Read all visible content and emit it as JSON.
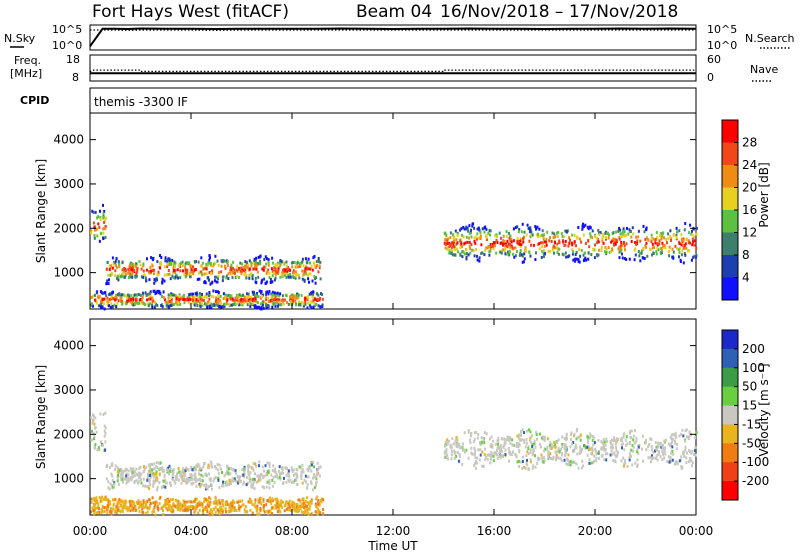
{
  "header": {
    "station": "Fort Hays West (fitACF)",
    "beam": "Beam 04",
    "date_range": "16/Nov/2018 – 17/Nov/2018"
  },
  "colors": {
    "trace": "#000000",
    "grid": "#000000"
  },
  "chart_data": [
    {
      "type": "line",
      "name": "noise-panel",
      "left_label": "N.Sky",
      "right_label": "N.Search",
      "left_ticks": [
        "10^5",
        "10^0"
      ],
      "right_ticks": [
        "10^5",
        "10^0"
      ],
      "x": [
        0,
        0.5,
        1,
        1.5,
        2,
        3,
        4,
        5,
        6,
        7,
        8,
        9,
        10,
        11,
        12,
        13,
        14,
        15,
        16,
        17,
        18,
        19,
        20,
        21,
        22,
        23,
        24
      ],
      "series": [
        {
          "values": [
            0.15,
            0.85,
            0.85,
            0.84,
            0.86,
            0.85,
            0.85,
            0.84,
            0.85,
            0.85,
            0.85,
            0.85,
            0.86,
            0.85,
            0.84,
            0.85,
            0.85,
            0.86,
            0.85,
            0.85,
            0.84,
            0.85,
            0.85,
            0.86,
            0.85,
            0.86,
            0.85
          ]
        },
        {
          "values": [
            0.8,
            0.8,
            0.8,
            0.79,
            0.8,
            0.8,
            0.8,
            0.79,
            0.8,
            0.8,
            0.8,
            0.8,
            0.8,
            0.8,
            0.8,
            0.8,
            0.8,
            0.8,
            0.8,
            0.8,
            0.8,
            0.8,
            0.8,
            0.8,
            0.8,
            0.8,
            0.8
          ]
        }
      ]
    },
    {
      "type": "line",
      "name": "frequency-panel",
      "left_label_lines": [
        "Freq.",
        "[MHz]"
      ],
      "right_label": "Nave",
      "left_ticks": [
        "18",
        "8"
      ],
      "right_ticks": [
        "60",
        "0"
      ],
      "x": [
        0,
        0.1,
        2,
        2.01,
        14,
        14.01,
        24
      ],
      "series": [
        {
          "values": [
            0.35,
            0.42,
            0.42,
            0.37,
            0.37,
            0.42,
            0.42
          ]
        },
        {
          "values": [
            0.3,
            0.3,
            0.3,
            0.3,
            0.3,
            0.3,
            0.3
          ]
        }
      ]
    },
    {
      "type": "text",
      "name": "cpid-panel",
      "label": "CPID",
      "text": "themis -3300 IF"
    },
    {
      "type": "heatmap",
      "name": "power-panel",
      "ylabel": "Slant Range [km]",
      "ylim": [
        180,
        4600
      ],
      "yticks": [
        1000,
        2000,
        3000,
        4000
      ],
      "xlim": [
        0,
        24
      ],
      "xticks": [
        "00:00",
        "04:00",
        "08:00",
        "12:00",
        "16:00",
        "20:00",
        "00:00"
      ],
      "colorbar": {
        "label": "Power [dB]",
        "ticks": [
          4,
          8,
          12,
          16,
          20,
          24,
          28
        ],
        "colors": [
          "#1010ff",
          "#1e3fb0",
          "#3d7f6a",
          "#5cc040",
          "#e8d020",
          "#f08c14",
          "#f04818",
          "#ff0000"
        ]
      },
      "scatter_bands": [
        {
          "t0": 0,
          "t1": 0.6,
          "center": 2100,
          "width": 700
        },
        {
          "t0": 0.6,
          "t1": 9.1,
          "center": 1100,
          "width": 500
        },
        {
          "t0": 0,
          "t1": 9.2,
          "center": 420,
          "width": 320
        },
        {
          "t0": 14,
          "t1": 24,
          "center": 1700,
          "width": 700
        }
      ]
    },
    {
      "type": "heatmap",
      "name": "velocity-panel",
      "ylabel": "Slant Range [km]",
      "ylim": [
        180,
        4600
      ],
      "yticks": [
        1000,
        2000,
        3000,
        4000
      ],
      "xlim": [
        0,
        24
      ],
      "xticks": [
        "00:00",
        "04:00",
        "08:00",
        "12:00",
        "16:00",
        "20:00",
        "00:00"
      ],
      "xlabel": "Time UT",
      "colorbar": {
        "label": "Velocity [m s⁻¹]",
        "ticks": [
          200,
          100,
          50,
          15,
          -15,
          -50,
          -100,
          -200
        ],
        "colors": [
          "#1c28c8",
          "#2e60b8",
          "#3c9c48",
          "#68d040",
          "#c8c8c0",
          "#e8b420",
          "#f07c14",
          "#f04018",
          "#ff0000"
        ]
      }
    }
  ]
}
